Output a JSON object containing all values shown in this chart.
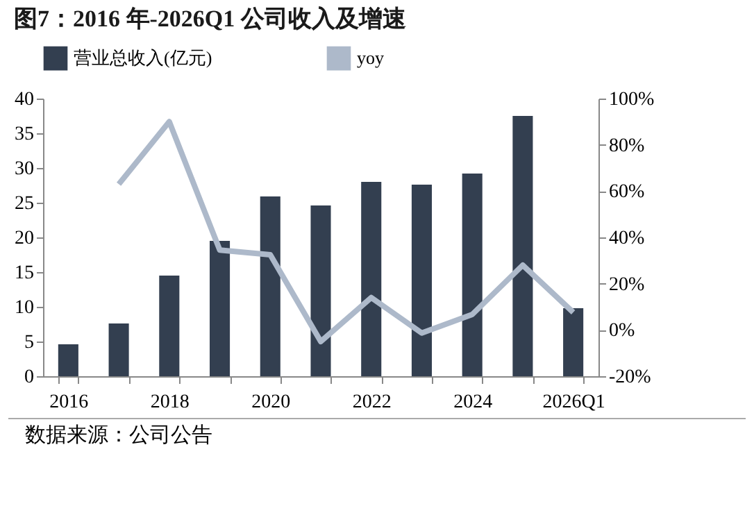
{
  "chart_data": {
    "type": "bar",
    "title": "图7：2016 年-2026Q1 公司收入及增速",
    "categories": [
      "2016",
      null,
      "2018",
      null,
      "2020",
      null,
      "2022",
      null,
      "2024",
      null,
      "2026Q1"
    ],
    "series": [
      {
        "name": "营业总收入(亿元)",
        "color": "#333f50",
        "values": [
          4.6,
          7.6,
          14.5,
          19.5,
          25.9,
          24.6,
          28.0,
          27.6,
          29.2,
          37.5,
          9.8
        ]
      },
      {
        "name": "yoy",
        "type": "line",
        "axis": "y2",
        "color": "#adb9ca",
        "values": [
          null,
          63,
          90,
          34.5,
          32.5,
          -5,
          14,
          -1.3,
          6.7,
          28,
          7.6
        ]
      }
    ],
    "ylim": [
      0,
      40
    ],
    "yticks": [
      0,
      5,
      10,
      15,
      20,
      25,
      30,
      35,
      40
    ],
    "y2lim": [
      -20,
      100
    ],
    "y2ticks": [
      {
        "value": -20,
        "label": "-20%"
      },
      {
        "value": 0,
        "label": "0%"
      },
      {
        "value": 20,
        "label": "20%"
      },
      {
        "value": 40,
        "label": "40%"
      },
      {
        "value": 60,
        "label": "60%"
      },
      {
        "value": 80,
        "label": "80%"
      },
      {
        "value": 100,
        "label": "100%"
      }
    ],
    "legend": "top",
    "grid": false,
    "annotations": [
      "数据来源：公司公告"
    ]
  }
}
